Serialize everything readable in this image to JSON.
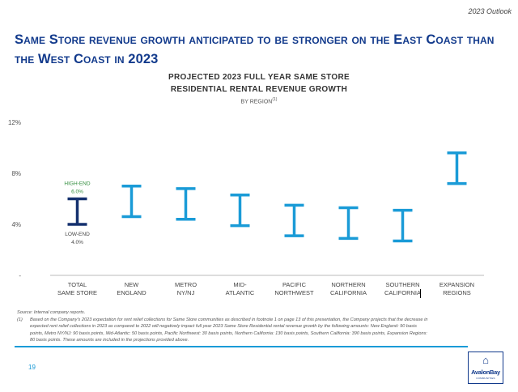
{
  "header": {
    "section": "2023 Outlook"
  },
  "title": "Same Store revenue growth anticipated to be stronger on the East Coast than the West Coast in 2023",
  "chart_data": {
    "type": "floating-range",
    "title_line1": "PROJECTED 2023 FULL YEAR SAME STORE",
    "title_line2": "RESIDENTIAL RENTAL REVENUE GROWTH",
    "subtitle": "BY REGION",
    "subtitle_sup": "(1)",
    "y_ticks": [
      "12%",
      "8%",
      "4%",
      "-"
    ],
    "ylim": [
      0,
      12
    ],
    "categories": [
      [
        "TOTAL",
        "SAME STORE"
      ],
      [
        "NEW",
        "ENGLAND"
      ],
      [
        "METRO",
        "NY/NJ"
      ],
      [
        "MID-",
        "ATLANTIC"
      ],
      [
        "PACIFIC",
        "NORTHWEST"
      ],
      [
        "NORTHERN",
        "CALIFORNIA"
      ],
      [
        "SOUTHERN",
        "CALIFORNIA"
      ],
      [
        "EXPANSION",
        "REGIONS"
      ]
    ],
    "series": [
      {
        "name": "Low-End",
        "values": [
          4.0,
          4.6,
          4.4,
          3.9,
          3.1,
          2.9,
          2.7,
          7.2
        ]
      },
      {
        "name": "High-End",
        "values": [
          6.0,
          7.0,
          6.8,
          6.3,
          5.5,
          5.3,
          5.1,
          9.6
        ]
      }
    ],
    "annotations": {
      "high_label": "HIGH-END",
      "high_value": "6.0%",
      "low_label": "LOW-END",
      "low_value": "4.0%"
    },
    "colors": {
      "highlight": "#14306e",
      "default": "#1a9bd7",
      "high_text": "#2e8b3a",
      "axis": "#bbbbbb"
    }
  },
  "footnotes": {
    "source": "Source:  Internal company reports.",
    "note_mark": "(1)",
    "note_lines": [
      "Based on the Company's 2023 expectation for rent relief collections for Same Store communities as described in footnote 1 on page 13 of this presentation, the Company projects that the decrease in",
      "expected rent relief collections in 2023 as compared to 2022 will negatively impact full year 2023 Same Store Residential rental revenue growth by the following amounts:  New England: 90 basis",
      "points, Metro NY/NJ: 90 basis points, Mid-Atlantic: 50 basis points, Pacific Northwest: 30 basis points, Northern California: 130 basis points, Southern California: 390 basis points, Expansion Regions:",
      "80 basis points. These amounts are included in the projections provided above."
    ]
  },
  "page_number": "19",
  "logo": {
    "name": "AvalonBay",
    "sub": "COMMUNITIES"
  }
}
